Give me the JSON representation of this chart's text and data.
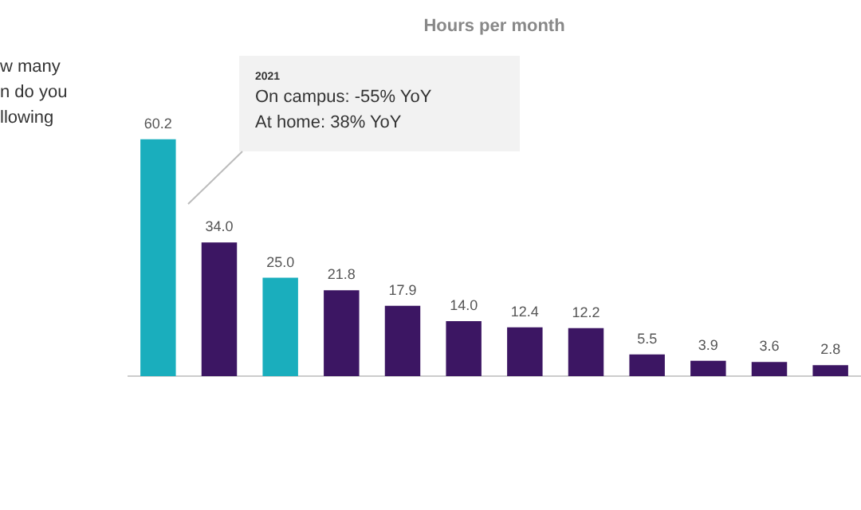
{
  "chart_data": {
    "type": "bar",
    "title": "Hours per month",
    "categories": [
      null,
      null,
      null,
      null,
      null,
      null,
      null,
      null,
      null,
      null,
      null,
      null
    ],
    "values": [
      60.2,
      34.0,
      25.0,
      21.8,
      17.9,
      14.0,
      12.4,
      12.2,
      5.5,
      3.9,
      3.6,
      2.8
    ],
    "value_labels": [
      "60.2",
      "34.0",
      "25.0",
      "21.8",
      "17.9",
      "14.0",
      "12.4",
      "12.2",
      "5.5",
      "3.9",
      "3.6",
      "2.8"
    ],
    "colors": [
      "#1aaebd",
      "#3c1663",
      "#1aaebd",
      "#3c1663",
      "#3c1663",
      "#3c1663",
      "#3c1663",
      "#3c1663",
      "#3c1663",
      "#3c1663",
      "#3c1663",
      "#3c1663"
    ],
    "annotations": [
      "w many\nn do you\nllowing",
      "2021\nOn campus: -55% YoY\nAt home: 38% YoY"
    ],
    "grid": false,
    "legend": false
  }
}
